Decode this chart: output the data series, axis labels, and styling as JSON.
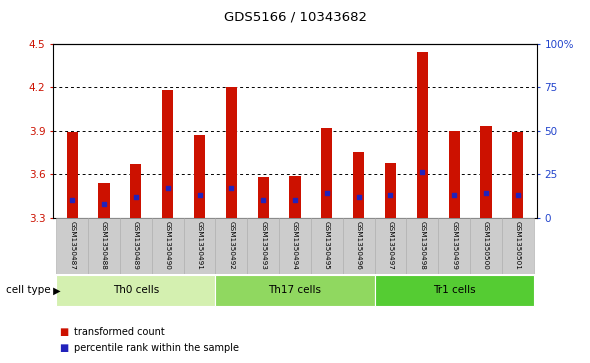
{
  "title": "GDS5166 / 10343682",
  "samples": [
    "GSM1350487",
    "GSM1350488",
    "GSM1350489",
    "GSM1350490",
    "GSM1350491",
    "GSM1350492",
    "GSM1350493",
    "GSM1350494",
    "GSM1350495",
    "GSM1350496",
    "GSM1350497",
    "GSM1350498",
    "GSM1350499",
    "GSM1350500",
    "GSM1350501"
  ],
  "transformed_count": [
    3.89,
    3.54,
    3.67,
    4.18,
    3.87,
    4.2,
    3.58,
    3.59,
    3.92,
    3.75,
    3.68,
    4.44,
    3.9,
    3.93,
    3.89
  ],
  "percentile_rank": [
    10,
    8,
    12,
    17,
    13,
    17,
    10,
    10,
    14,
    12,
    13,
    26,
    13,
    14,
    13
  ],
  "y_min": 3.3,
  "y_max": 4.5,
  "y_ticks_left": [
    3.3,
    3.6,
    3.9,
    4.2,
    4.5
  ],
  "y_ticks_right": [
    0,
    25,
    50,
    75,
    100
  ],
  "dotted_lines": [
    3.6,
    3.9,
    4.2
  ],
  "bar_color": "#cc1100",
  "blue_color": "#2222bb",
  "groups": [
    {
      "label": "Th0 cells",
      "start": 0,
      "end": 4
    },
    {
      "label": "Th17 cells",
      "start": 5,
      "end": 9
    },
    {
      "label": "Tr1 cells",
      "start": 10,
      "end": 14
    }
  ],
  "group_colors": [
    "#d4f0b0",
    "#90d860",
    "#55cc33"
  ],
  "cell_type_label": "cell type",
  "legend_label_red": "transformed count",
  "legend_label_blue": "percentile rank within the sample",
  "bar_width": 0.35,
  "label_area_color": "#cccccc",
  "plot_bg": "#ffffff"
}
